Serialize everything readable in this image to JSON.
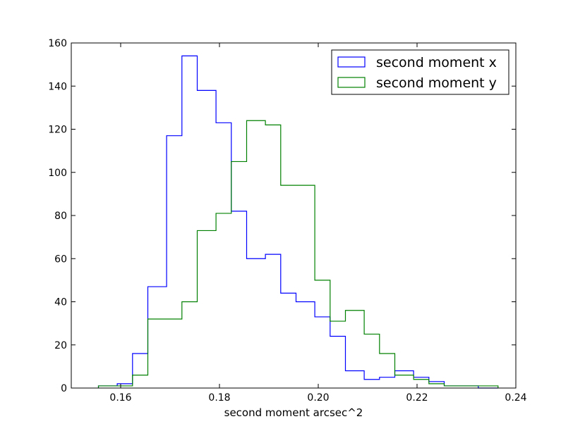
{
  "chart_data": {
    "type": "histogram",
    "title": "",
    "xlabel": "second moment arcsec^2",
    "ylabel": "",
    "xlim": [
      0.15,
      0.24
    ],
    "ylim": [
      0,
      160
    ],
    "xticks": [
      0.16,
      0.18,
      0.2,
      0.22,
      0.24
    ],
    "xtick_labels": [
      "0.16",
      "0.18",
      "0.20",
      "0.22",
      "0.24"
    ],
    "yticks": [
      0,
      20,
      40,
      60,
      80,
      100,
      120,
      140,
      160
    ],
    "ytick_labels": [
      "0",
      "20",
      "40",
      "60",
      "80",
      "100",
      "120",
      "140",
      "160"
    ],
    "grid": false,
    "legend_position": "top-right",
    "series": [
      {
        "name": "second moment x",
        "color": "#0000ff",
        "bin_edges": [
          0.1555,
          0.1593,
          0.1624,
          0.1655,
          0.1693,
          0.1724,
          0.1755,
          0.1793,
          0.1824,
          0.1855,
          0.1893,
          0.1924,
          0.1955,
          0.1993,
          0.2024,
          0.2055,
          0.2093,
          0.2124,
          0.2155,
          0.2193,
          0.2224,
          0.2255,
          0.2293,
          0.2324,
          0.2364
        ],
        "counts": [
          1,
          2,
          16,
          47,
          117,
          154,
          138,
          123,
          82,
          60,
          62,
          44,
          40,
          33,
          24,
          8,
          4,
          5,
          8,
          5,
          3,
          1,
          1,
          0
        ]
      },
      {
        "name": "second moment y",
        "color": "#008000",
        "bin_edges": [
          0.1555,
          0.1593,
          0.1624,
          0.1655,
          0.1693,
          0.1724,
          0.1755,
          0.1793,
          0.1824,
          0.1855,
          0.1893,
          0.1924,
          0.1955,
          0.1993,
          0.2024,
          0.2055,
          0.2093,
          0.2124,
          0.2155,
          0.2193,
          0.2224,
          0.2255,
          0.2293,
          0.2324,
          0.2364
        ],
        "counts": [
          1,
          1,
          6,
          32,
          32,
          40,
          73,
          81,
          105,
          124,
          122,
          94,
          94,
          50,
          31,
          36,
          25,
          16,
          6,
          4,
          2,
          1,
          1,
          1
        ]
      }
    ]
  }
}
